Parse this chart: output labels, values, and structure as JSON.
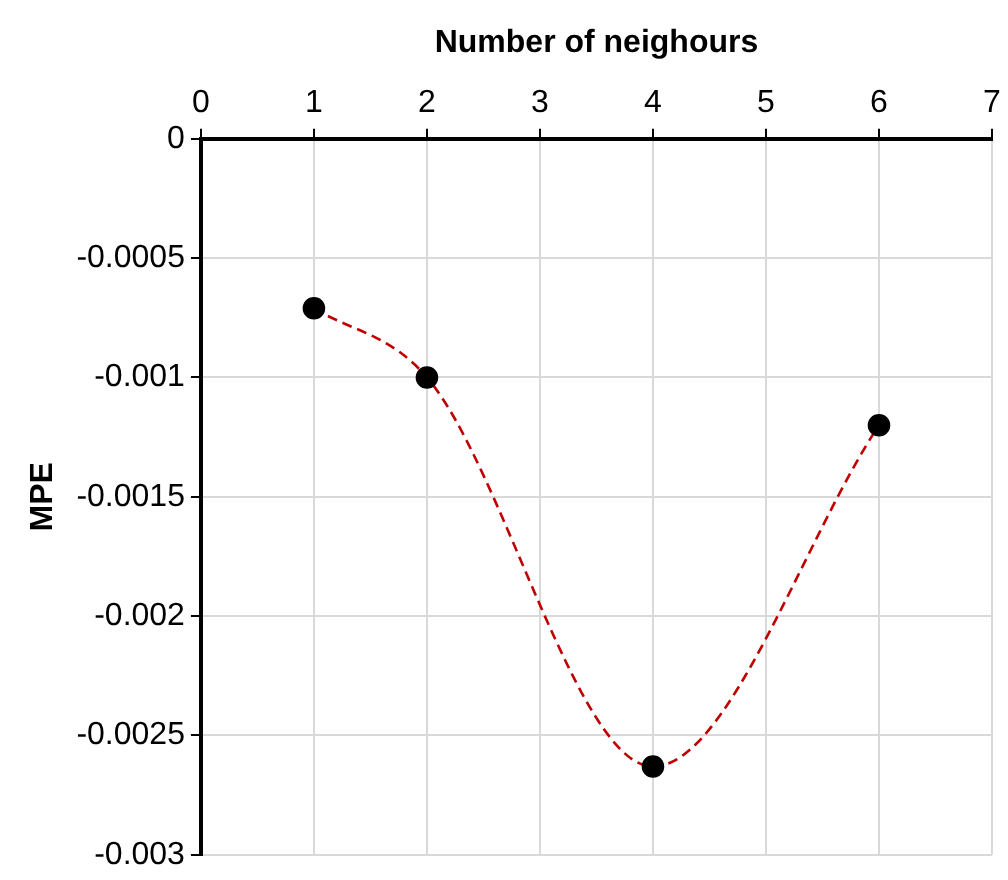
{
  "chart_data": {
    "type": "line",
    "xlabel": "Number of neighours",
    "ylabel": "MPE",
    "x": [
      1,
      2,
      4,
      6
    ],
    "series": [
      {
        "color": "#c00000",
        "colors": [
          "#000000",
          "#000000",
          "#000000",
          "#000000"
        ],
        "values": [
          -0.00071,
          -0.001,
          -0.00263,
          -0.0012
        ]
      }
    ],
    "xlim": [
      0,
      7
    ],
    "xticks": [
      0,
      1,
      2,
      3,
      4,
      5,
      6,
      7
    ],
    "ylim": [
      -0.003,
      0
    ],
    "yticks": [
      0,
      -0.0005,
      -0.001,
      -0.0015,
      -0.002,
      -0.0025,
      -0.003
    ],
    "grid": true,
    "legend": false,
    "marker": "circle",
    "line_style": "dashed"
  }
}
